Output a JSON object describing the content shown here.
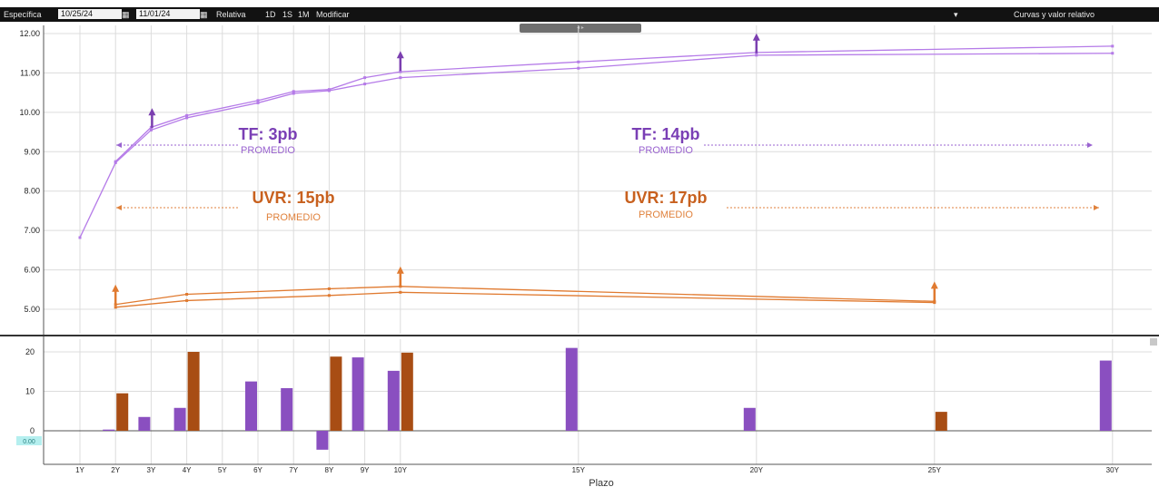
{
  "toolbar": {
    "mode_label": "Específica",
    "start_date": "10/25/24",
    "end_date": "11/01/24",
    "relative_label": "Relativa",
    "btn_1d": "1D",
    "btn_1s": "1S",
    "btn_1m": "1M",
    "modify_label": "Modificar",
    "curves_label": "Curvas y valor relativo"
  },
  "chart_data": [
    {
      "type": "line",
      "yticks": [
        "12.00",
        "11.00",
        "10.00",
        "9.00",
        "8.00",
        "7.00",
        "6.00",
        "5.00"
      ],
      "ylim": [
        4.5,
        12.1
      ],
      "x": [
        1,
        2,
        3,
        4,
        6,
        7,
        8,
        9,
        10,
        15,
        20,
        25,
        30
      ],
      "series": [
        {
          "key": "tf_old",
          "color": "#b57be8",
          "x": [
            1,
            2,
            3,
            4,
            6,
            7,
            8,
            9,
            10,
            15,
            20,
            30
          ],
          "values": [
            6.82,
            8.72,
            9.55,
            9.86,
            10.24,
            10.48,
            10.55,
            10.72,
            10.88,
            11.12,
            11.45,
            11.5
          ]
        },
        {
          "key": "tf_new",
          "color": "#b57be8",
          "x": [
            2,
            3,
            4,
            6,
            7,
            8,
            9,
            10,
            15,
            20,
            30
          ],
          "values": [
            8.75,
            9.62,
            9.92,
            10.3,
            10.53,
            10.58,
            10.88,
            11.03,
            11.28,
            11.52,
            11.68
          ]
        },
        {
          "key": "uvr_old",
          "color": "#e07a30",
          "x": [
            2,
            4,
            8,
            10,
            25
          ],
          "values": [
            5.05,
            5.22,
            5.35,
            5.43,
            5.17
          ]
        },
        {
          "key": "uvr_new",
          "color": "#e07a30",
          "x": [
            2,
            4,
            8,
            10,
            25
          ],
          "values": [
            5.12,
            5.38,
            5.52,
            5.58,
            5.2
          ]
        }
      ],
      "arrows": [
        {
          "x": 3,
          "y": 9.6,
          "color": "#7b3fb0"
        },
        {
          "x": 10,
          "y": 11.05,
          "color": "#7b3fb0"
        },
        {
          "x": 20,
          "y": 11.5,
          "color": "#7b3fb0"
        },
        {
          "x": 2,
          "y": 5.12,
          "color": "#e07a30"
        },
        {
          "x": 10,
          "y": 5.58,
          "color": "#e07a30"
        },
        {
          "x": 25,
          "y": 5.2,
          "color": "#e07a30"
        }
      ],
      "annotations": [
        {
          "text": "TF: 3pb",
          "sub": "PROMEDIO",
          "color": "#7a3fb5",
          "subcolor": "#9a63d0"
        },
        {
          "text": "TF: 14pb",
          "sub": "PROMEDIO",
          "color": "#7a3fb5",
          "subcolor": "#9a63d0"
        },
        {
          "text": "UVR: 15pb",
          "sub": "PROMEDIO",
          "color": "#c8611f",
          "subcolor": "#e0823d"
        },
        {
          "text": "UVR: 17pb",
          "sub": "PROMEDIO",
          "color": "#c8611f",
          "subcolor": "#e0823d"
        }
      ]
    },
    {
      "type": "bar",
      "yticks": [
        "20",
        "10",
        "0"
      ],
      "ylim": [
        -8,
        23
      ],
      "zero_label": "0.00",
      "xlabel": "Plazo",
      "categories": [
        "1Y",
        "2Y",
        "3Y",
        "4Y",
        "5Y",
        "6Y",
        "7Y",
        "8Y",
        "9Y",
        "10Y",
        "15Y",
        "20Y",
        "25Y",
        "30Y"
      ],
      "series": [
        {
          "name": "TF",
          "color": "#8a4fc0",
          "x": [
            2,
            3,
            4,
            6,
            7,
            8,
            9,
            10,
            15,
            20,
            30
          ],
          "values": [
            0.3,
            3.5,
            5.8,
            12.5,
            10.8,
            -4.8,
            18.6,
            15.2,
            21,
            5.8,
            17.8
          ]
        },
        {
          "name": "UVR",
          "color": "#a84d14",
          "x": [
            2,
            4,
            8,
            10,
            25
          ],
          "values": [
            9.5,
            20,
            18.8,
            19.8,
            4.8
          ]
        }
      ]
    }
  ]
}
